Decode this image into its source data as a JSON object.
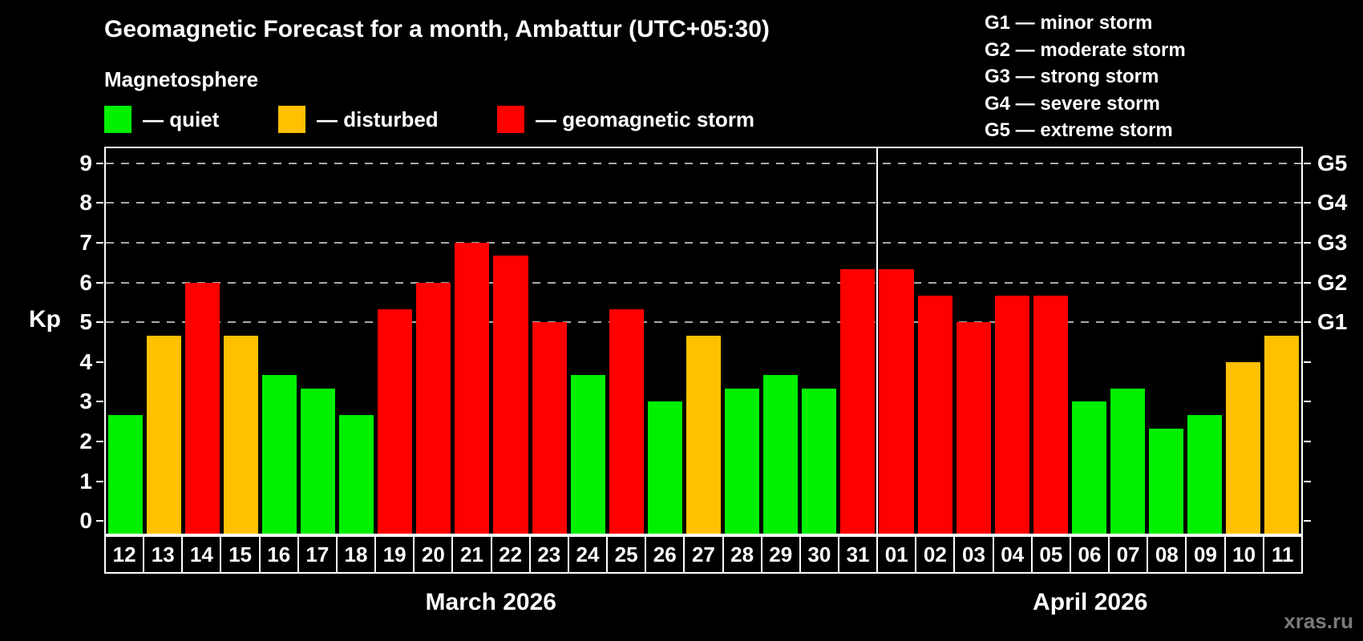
{
  "header": {
    "title": "Geomagnetic Forecast for a month, Ambattur (UTC+05:30)",
    "subtitle": "Magnetosphere"
  },
  "legend": {
    "items": [
      {
        "key": "quiet",
        "label": "— quiet",
        "color": "#00f000"
      },
      {
        "key": "disturbed",
        "label": "— disturbed",
        "color": "#ffc000"
      },
      {
        "key": "storm",
        "label": "— geomagnetic storm",
        "color": "#ff0000"
      }
    ]
  },
  "g_legend": {
    "items": [
      {
        "label": "G1 — minor storm"
      },
      {
        "label": "G2 — moderate storm"
      },
      {
        "label": "G3 — strong storm"
      },
      {
        "label": "G4 — severe storm"
      },
      {
        "label": "G5 — extreme storm"
      }
    ]
  },
  "watermark": "xras.ru",
  "chart_data": {
    "type": "bar",
    "ylabel": "Kp",
    "ylim": [
      -0.32,
      9.38
    ],
    "y_ticks": [
      0,
      1,
      2,
      3,
      4,
      5,
      6,
      7,
      8,
      9
    ],
    "gridlines_at": [
      5,
      6,
      7,
      8,
      9
    ],
    "grid": "dashed horizontal at Kp 5-9 only",
    "legend_position": "top",
    "right_axis_labels": [
      {
        "kp": 5,
        "label": "G1"
      },
      {
        "kp": 6,
        "label": "G2"
      },
      {
        "kp": 7,
        "label": "G3"
      },
      {
        "kp": 8,
        "label": "G4"
      },
      {
        "kp": 9,
        "label": "G5"
      }
    ],
    "colors": {
      "quiet": "#00f000",
      "disturbed": "#ffc000",
      "storm": "#ff0000"
    },
    "months": [
      {
        "label": "March 2026",
        "start": 0,
        "count": 20
      },
      {
        "label": "April 2026",
        "start": 20,
        "count": 11
      }
    ],
    "bars": [
      {
        "day": "12",
        "value": 2.67,
        "status": "quiet"
      },
      {
        "day": "13",
        "value": 4.67,
        "status": "disturbed"
      },
      {
        "day": "14",
        "value": 6.0,
        "status": "storm"
      },
      {
        "day": "15",
        "value": 4.67,
        "status": "disturbed"
      },
      {
        "day": "16",
        "value": 3.67,
        "status": "quiet"
      },
      {
        "day": "17",
        "value": 3.33,
        "status": "quiet"
      },
      {
        "day": "18",
        "value": 2.67,
        "status": "quiet"
      },
      {
        "day": "19",
        "value": 5.33,
        "status": "storm"
      },
      {
        "day": "20",
        "value": 6.0,
        "status": "storm"
      },
      {
        "day": "21",
        "value": 7.0,
        "status": "storm"
      },
      {
        "day": "22",
        "value": 6.67,
        "status": "storm"
      },
      {
        "day": "23",
        "value": 5.0,
        "status": "storm"
      },
      {
        "day": "24",
        "value": 3.67,
        "status": "quiet"
      },
      {
        "day": "25",
        "value": 5.33,
        "status": "storm"
      },
      {
        "day": "26",
        "value": 3.0,
        "status": "quiet"
      },
      {
        "day": "27",
        "value": 4.67,
        "status": "disturbed"
      },
      {
        "day": "28",
        "value": 3.33,
        "status": "quiet"
      },
      {
        "day": "29",
        "value": 3.67,
        "status": "quiet"
      },
      {
        "day": "30",
        "value": 3.33,
        "status": "quiet"
      },
      {
        "day": "31",
        "value": 6.33,
        "status": "storm"
      },
      {
        "day": "01",
        "value": 6.33,
        "status": "storm"
      },
      {
        "day": "02",
        "value": 5.67,
        "status": "storm"
      },
      {
        "day": "03",
        "value": 5.0,
        "status": "storm"
      },
      {
        "day": "04",
        "value": 5.67,
        "status": "storm"
      },
      {
        "day": "05",
        "value": 5.67,
        "status": "storm"
      },
      {
        "day": "06",
        "value": 3.0,
        "status": "quiet"
      },
      {
        "day": "07",
        "value": 3.33,
        "status": "quiet"
      },
      {
        "day": "08",
        "value": 2.33,
        "status": "quiet"
      },
      {
        "day": "09",
        "value": 2.67,
        "status": "quiet"
      },
      {
        "day": "10",
        "value": 4.0,
        "status": "disturbed"
      },
      {
        "day": "11",
        "value": 4.67,
        "status": "disturbed"
      }
    ]
  }
}
